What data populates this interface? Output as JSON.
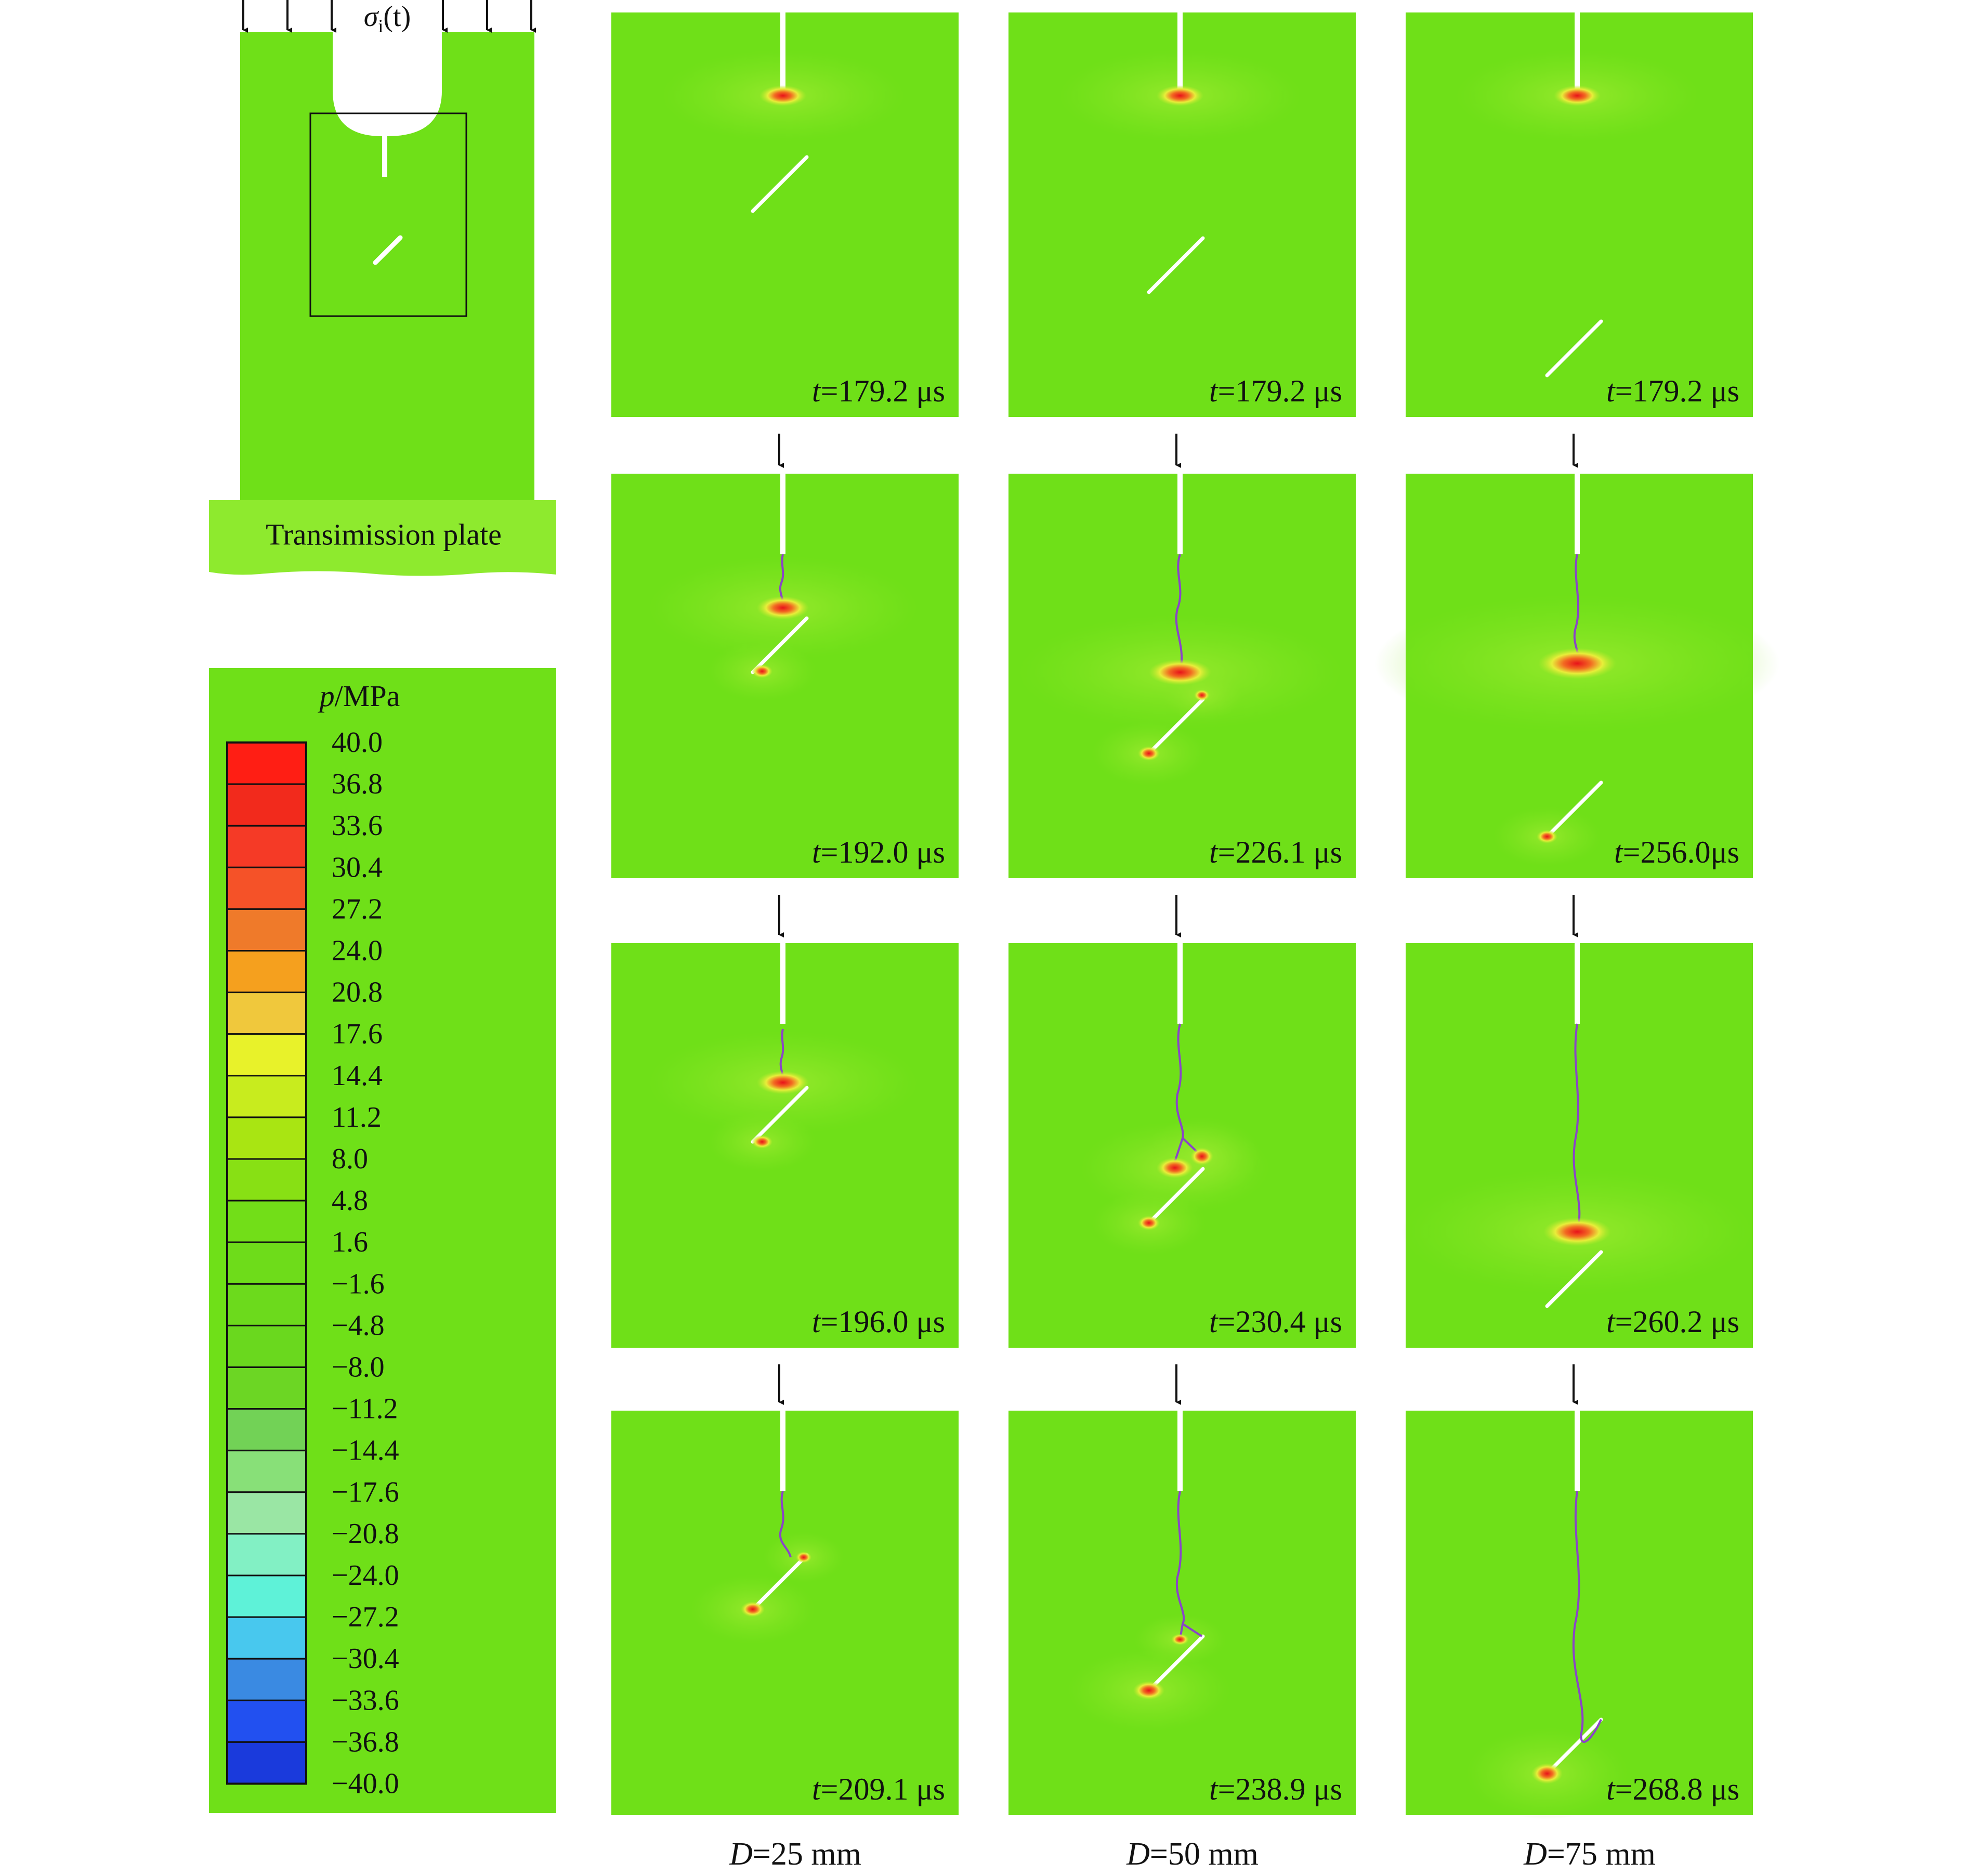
{
  "colors": {
    "field": "#6FE018",
    "field_light": "#8EEA2E",
    "crack": "#8A44C8",
    "hot": "#F2231A",
    "background": "#ffffff"
  },
  "schematic": {
    "load_label_sigma": "σ",
    "load_label_sub": "i",
    "load_label_t": "(t)",
    "plate_label": "Transimission plate"
  },
  "legend": {
    "title_italic": "p",
    "title_rest": "/MPa",
    "levels": [
      "40.0",
      "36.8",
      "33.6",
      "30.4",
      "27.2",
      "24.0",
      "20.8",
      "17.6",
      "14.4",
      "11.2",
      "8.0",
      "4.8",
      "1.6",
      "−1.6",
      "−4.8",
      "−8.0",
      "−11.2",
      "−14.4",
      "−17.6",
      "−20.8",
      "−24.0",
      "−27.2",
      "−30.4",
      "−33.6",
      "−36.8",
      "−40.0"
    ],
    "colors": [
      "#FF1E14",
      "#F22A1C",
      "#F53A26",
      "#F55228",
      "#EF7A2A",
      "#F5A01E",
      "#F0C83C",
      "#E8F22A",
      "#C8EC1E",
      "#A9E512",
      "#88E014",
      "#72DE18",
      "#6EDC1A",
      "#6CDA1C",
      "#6AD81E",
      "#6CD624",
      "#72D256",
      "#88E078",
      "#9AE6A4",
      "#82F0C4",
      "#5EF2D8",
      "#48C8EE",
      "#3A8AE2",
      "#2250F0",
      "#1A3ADC",
      "#1A30C2"
    ]
  },
  "columns": [
    {
      "d_italic": "D",
      "d_rest": "=25 mm",
      "panels": [
        {
          "t_italic": "t",
          "t_rest": "=179.2 μs"
        },
        {
          "t_italic": "t",
          "t_rest": "=192.0 μs"
        },
        {
          "t_italic": "t",
          "t_rest": "=196.0 μs"
        },
        {
          "t_italic": "t",
          "t_rest": "=209.1 μs"
        }
      ]
    },
    {
      "d_italic": "D",
      "d_rest": "=50 mm",
      "panels": [
        {
          "t_italic": "t",
          "t_rest": "=179.2 μs"
        },
        {
          "t_italic": "t",
          "t_rest": "=226.1 μs"
        },
        {
          "t_italic": "t",
          "t_rest": "=230.4 μs"
        },
        {
          "t_italic": "t",
          "t_rest": "=238.9 μs"
        }
      ]
    },
    {
      "d_italic": "D",
      "d_rest": "=75 mm",
      "panels": [
        {
          "t_italic": "t",
          "t_rest": "=179.2 μs"
        },
        {
          "t_italic": "t",
          "t_rest": "=256.0μs"
        },
        {
          "t_italic": "t",
          "t_rest": "=260.2 μs"
        },
        {
          "t_italic": "t",
          "t_rest": "=268.8 μs"
        }
      ]
    }
  ]
}
